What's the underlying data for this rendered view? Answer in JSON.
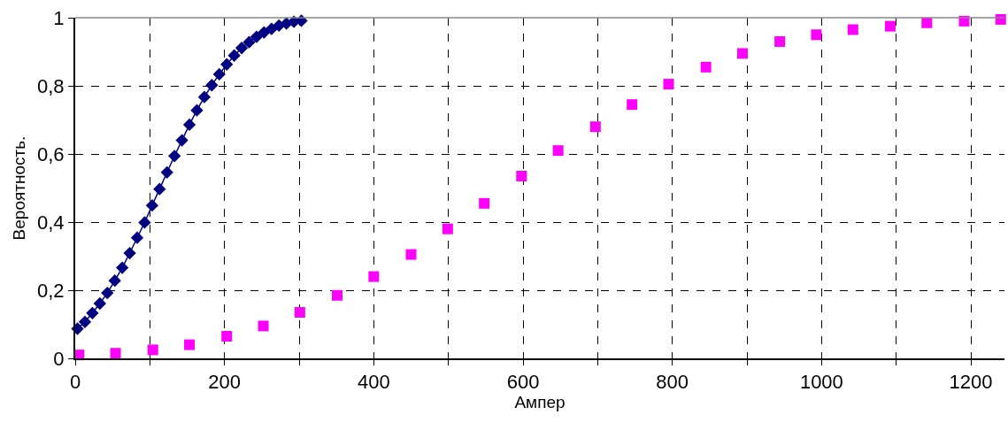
{
  "chart_data": {
    "type": "scatter",
    "xlabel": "Ампер",
    "ylabel": "Вероятность.",
    "xlim": [
      0,
      1245
    ],
    "ylim": [
      0,
      1
    ],
    "xticks": [
      0,
      {
        "value": 100,
        "label": null
      },
      200,
      {
        "value": 300,
        "label": null
      },
      400,
      {
        "value": 500,
        "label": null
      },
      600,
      {
        "value": 700,
        "label": null
      },
      800,
      {
        "value": 900,
        "label": null
      },
      1000,
      {
        "value": 1100,
        "label": null
      },
      1200
    ],
    "yticks": [
      0,
      {
        "value": 0.2,
        "label": "0,2"
      },
      {
        "value": 0.4,
        "label": "0,4"
      },
      {
        "value": 0.6,
        "label": "0,6"
      },
      {
        "value": 0.8,
        "label": "0,8"
      },
      1
    ],
    "grid": true,
    "series": [
      {
        "type": "line",
        "marker": "diamond",
        "line_style": "solid",
        "color": "#000080",
        "x": [
          3,
          13,
          23,
          33,
          43,
          53,
          63,
          73,
          83,
          93,
          103,
          113,
          123,
          133,
          143,
          153,
          163,
          173,
          183,
          193,
          203,
          213,
          223,
          233,
          243,
          253,
          263,
          273,
          283,
          293,
          303
        ],
        "values": [
          0.087,
          0.107,
          0.133,
          0.161,
          0.192,
          0.228,
          0.266,
          0.309,
          0.354,
          0.399,
          0.449,
          0.497,
          0.546,
          0.594,
          0.64,
          0.686,
          0.728,
          0.767,
          0.802,
          0.834,
          0.863,
          0.889,
          0.911,
          0.928,
          0.944,
          0.957,
          0.967,
          0.977,
          0.983,
          0.988,
          0.991
        ]
      },
      {
        "marker": "square",
        "color": "#ff00ff",
        "x": [
          5,
          54,
          104,
          153,
          203,
          252,
          301,
          351,
          400,
          450,
          499,
          548,
          598,
          647,
          697,
          746,
          795,
          845,
          894,
          944,
          993,
          1042,
          1092,
          1141,
          1191,
          1240
        ],
        "values": [
          0.01,
          0.015,
          0.025,
          0.04,
          0.065,
          0.095,
          0.135,
          0.185,
          0.24,
          0.305,
          0.38,
          0.455,
          0.535,
          0.61,
          0.68,
          0.745,
          0.805,
          0.855,
          0.895,
          0.93,
          0.95,
          0.965,
          0.975,
          0.985,
          0.99,
          0.995
        ]
      }
    ]
  }
}
